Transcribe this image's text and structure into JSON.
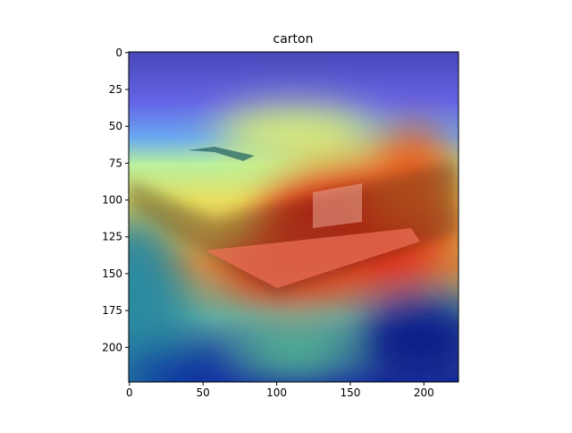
{
  "chart_data": {
    "type": "image",
    "title": "carton",
    "xlim": [
      -0.5,
      223.5
    ],
    "ylim": [
      223.5,
      -0.5
    ],
    "xticks": [
      0,
      50,
      100,
      150,
      200
    ],
    "yticks": [
      0,
      25,
      50,
      75,
      100,
      125,
      150,
      175,
      200
    ]
  }
}
